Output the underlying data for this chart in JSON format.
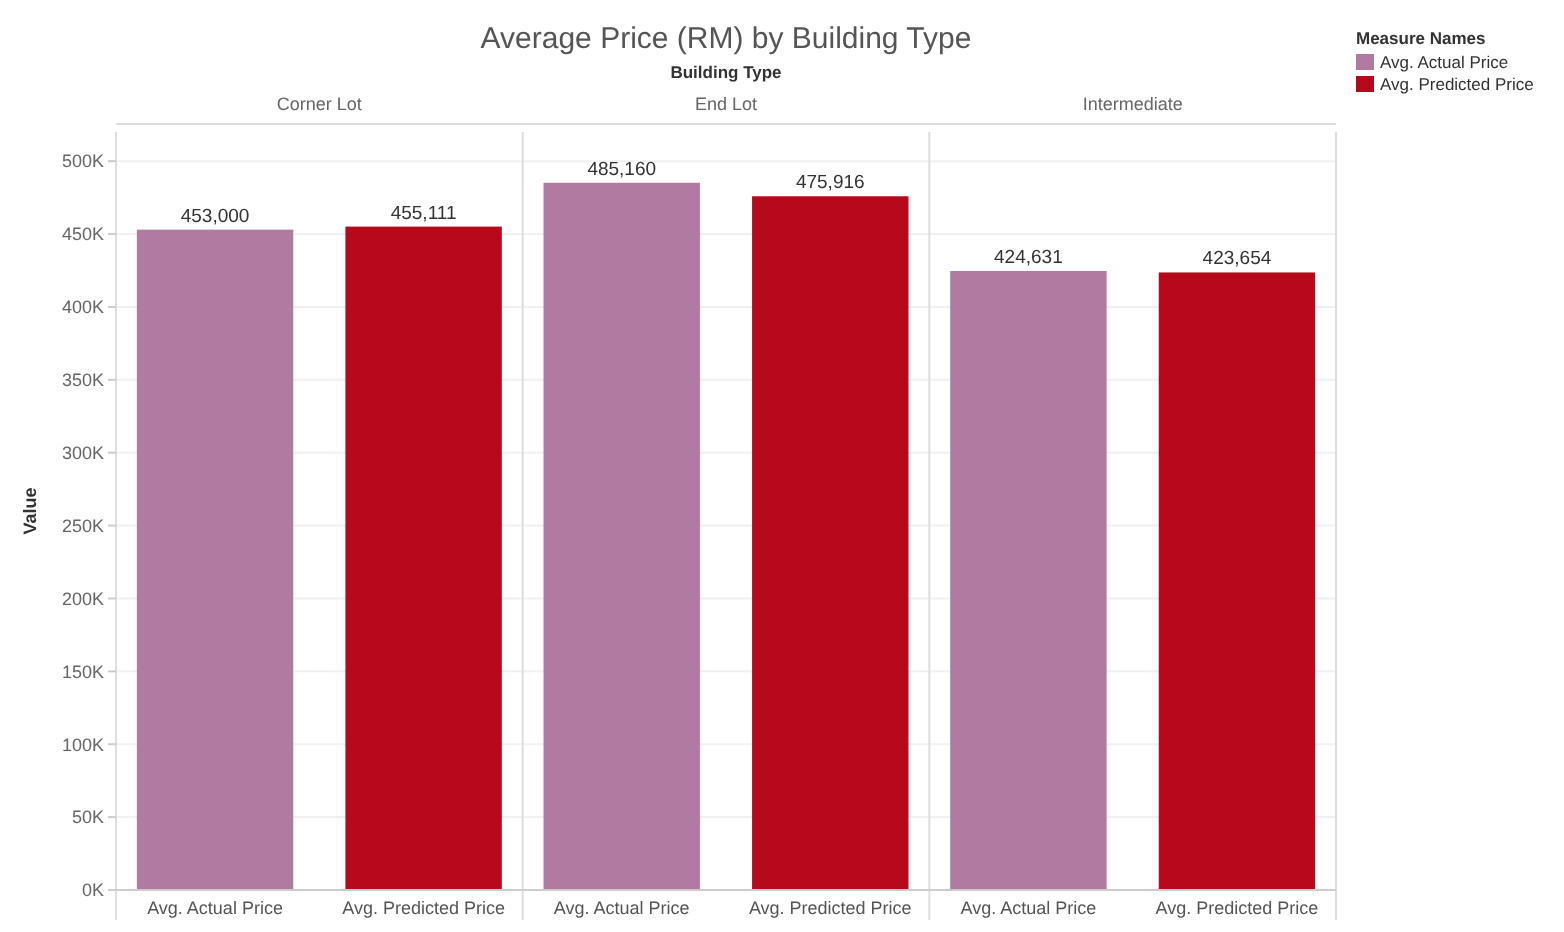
{
  "chart_data": {
    "type": "bar",
    "title": "Average Price (RM) by Building Type",
    "xlabel": "Building Type",
    "ylabel": "Value",
    "legend_title": "Measure Names",
    "legend": "top right",
    "categories": [
      "Corner Lot",
      "End Lot",
      "Intermediate"
    ],
    "series": [
      {
        "name": "Avg. Actual Price",
        "color": "#b07aa1",
        "values": [
          453000,
          485160,
          424631
        ],
        "value_labels": [
          "453,000",
          "485,160",
          "424,631"
        ]
      },
      {
        "name": "Avg. Predicted Price",
        "color": "#b60a1c",
        "values": [
          455111,
          475916,
          423654
        ],
        "value_labels": [
          "455,111",
          "475,916",
          "423,654"
        ]
      }
    ],
    "ylim": [
      0,
      520000
    ],
    "yticks": [
      {
        "value": 0,
        "label": "0K"
      },
      {
        "value": 50000,
        "label": "50K"
      },
      {
        "value": 100000,
        "label": "100K"
      },
      {
        "value": 150000,
        "label": "150K"
      },
      {
        "value": 200000,
        "label": "200K"
      },
      {
        "value": 250000,
        "label": "250K"
      },
      {
        "value": 300000,
        "label": "300K"
      },
      {
        "value": 350000,
        "label": "350K"
      },
      {
        "value": 400000,
        "label": "400K"
      },
      {
        "value": 450000,
        "label": "450K"
      },
      {
        "value": 500000,
        "label": "500K"
      }
    ],
    "grid": "y"
  }
}
